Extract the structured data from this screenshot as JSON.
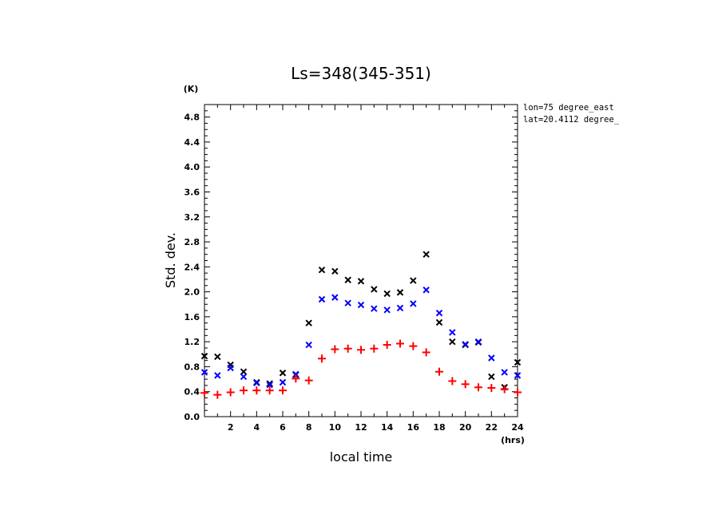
{
  "chart_data": {
    "type": "scatter",
    "title": "Ls=348(345-351)",
    "xlabel": "local time",
    "ylabel": "Std. dev.",
    "x_unit": "(hrs)",
    "y_unit": "(K)",
    "xlim": [
      0,
      24
    ],
    "ylim": [
      0,
      5.0
    ],
    "x_ticks": [
      2,
      4,
      6,
      8,
      10,
      12,
      14,
      16,
      18,
      20,
      22,
      24
    ],
    "y_ticks": [
      0.0,
      0.4,
      0.8,
      1.2,
      1.6,
      2.0,
      2.4,
      2.8,
      3.2,
      3.6,
      4.0,
      4.4,
      4.8
    ],
    "y_tick_labels": [
      "0.0",
      "0.4",
      "0.8",
      "1.2",
      "1.6",
      "2.0",
      "2.4",
      "2.8",
      "3.2",
      "3.6",
      "4.0",
      "4.4",
      "4.8"
    ],
    "annotations": [
      "lon=75 degree_east",
      "lat=20.4112 degree_"
    ],
    "grid": false,
    "series": [
      {
        "marker": "x",
        "color": "#000000",
        "x": [
          0,
          1,
          2,
          3,
          4,
          5,
          6,
          7,
          8,
          9,
          10,
          11,
          12,
          13,
          14,
          15,
          16,
          17,
          18,
          19,
          20,
          21,
          22,
          23,
          24
        ],
        "y": [
          0.97,
          0.96,
          0.83,
          0.72,
          0.55,
          0.53,
          0.7,
          0.67,
          1.5,
          2.35,
          2.33,
          2.19,
          2.17,
          2.04,
          1.97,
          1.99,
          2.18,
          2.6,
          1.51,
          1.2,
          1.15,
          1.19,
          0.64,
          0.47,
          0.87
        ]
      },
      {
        "marker": "x",
        "color": "#0000ff",
        "x": [
          0,
          1,
          2,
          3,
          4,
          5,
          6,
          7,
          8,
          9,
          10,
          11,
          12,
          13,
          14,
          15,
          16,
          17,
          18,
          19,
          20,
          21,
          22,
          23,
          24
        ],
        "y": [
          0.71,
          0.66,
          0.78,
          0.64,
          0.54,
          0.51,
          0.55,
          0.68,
          1.15,
          1.88,
          1.91,
          1.82,
          1.79,
          1.73,
          1.71,
          1.74,
          1.81,
          2.03,
          1.66,
          1.35,
          1.16,
          1.2,
          0.94,
          0.71,
          0.66
        ]
      },
      {
        "marker": "+",
        "color": "#ff0000",
        "x": [
          0,
          1,
          2,
          3,
          4,
          5,
          6,
          7,
          8,
          9,
          10,
          11,
          12,
          13,
          14,
          15,
          16,
          17,
          18,
          19,
          20,
          21,
          22,
          23,
          24
        ],
        "y": [
          0.38,
          0.35,
          0.39,
          0.42,
          0.42,
          0.42,
          0.42,
          0.61,
          0.58,
          0.93,
          1.08,
          1.09,
          1.07,
          1.09,
          1.15,
          1.17,
          1.13,
          1.03,
          0.72,
          0.57,
          0.52,
          0.47,
          0.46,
          0.44,
          0.39
        ]
      }
    ]
  }
}
